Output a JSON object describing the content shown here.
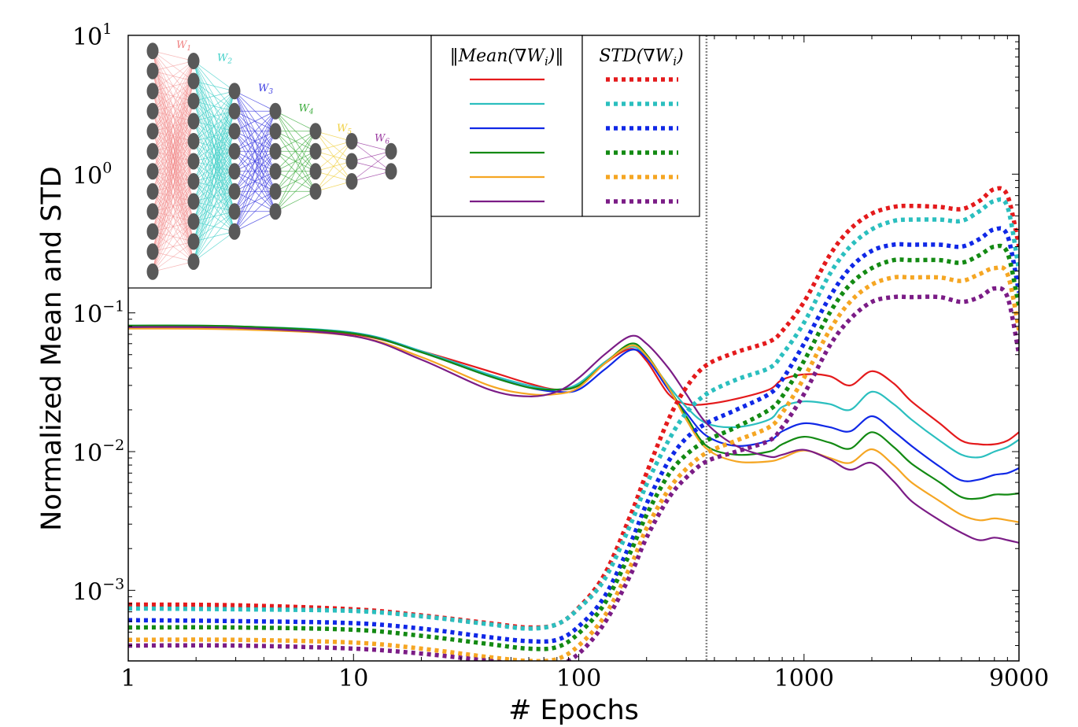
{
  "chart_data": {
    "type": "line",
    "title": "",
    "xlabel": "# Epochs",
    "ylabel": "Normalized Mean and STD",
    "xscale": "log",
    "yscale": "log",
    "xlim": [
      1,
      9000
    ],
    "ylim": [
      0.00031,
      10
    ],
    "grid": false,
    "x_ticks": [
      1,
      10,
      100,
      1000,
      9000
    ],
    "x_tick_labels": [
      "1",
      "10",
      "100",
      "1000",
      "9000"
    ],
    "y_ticks": [
      10,
      1,
      0.1,
      0.01,
      0.001
    ],
    "y_tick_labels": [
      {
        "base": "10",
        "exp": "1"
      },
      {
        "base": "10",
        "exp": "0"
      },
      {
        "base": "10",
        "exp": "−1"
      },
      {
        "base": "10",
        "exp": "−2"
      },
      {
        "base": "10",
        "exp": "−3"
      }
    ],
    "vertical_line": {
      "x": 369,
      "style": "dotted",
      "color": "#888888"
    },
    "x": [
      1,
      3,
      10,
      20,
      40,
      60,
      80,
      100,
      130,
      170,
      200,
      250,
      300,
      369,
      500,
      700,
      800,
      1000,
      1300,
      1600,
      2000,
      2500,
      3000,
      4000,
      5000,
      6000,
      7000,
      8000,
      9000
    ],
    "series": [
      {
        "name": "Mean W1",
        "kind": "mean",
        "color": "#e41a1c",
        "values": [
          0.08,
          0.079,
          0.07,
          0.053,
          0.038,
          0.031,
          0.028,
          0.03,
          0.043,
          0.055,
          0.045,
          0.026,
          0.022,
          0.022,
          0.024,
          0.028,
          0.033,
          0.036,
          0.035,
          0.03,
          0.038,
          0.031,
          0.023,
          0.016,
          0.012,
          0.0113,
          0.0113,
          0.012,
          0.0138
        ]
      },
      {
        "name": "Mean W2",
        "kind": "mean",
        "color": "#2bbfbf",
        "values": [
          0.081,
          0.08,
          0.072,
          0.053,
          0.036,
          0.03,
          0.028,
          0.031,
          0.044,
          0.057,
          0.048,
          0.03,
          0.021,
          0.016,
          0.015,
          0.017,
          0.021,
          0.023,
          0.022,
          0.02,
          0.027,
          0.022,
          0.017,
          0.012,
          0.0095,
          0.0091,
          0.01,
          0.0108,
          0.0122
        ]
      },
      {
        "name": "Mean W3",
        "kind": "mean",
        "color": "#1028e6",
        "values": [
          0.08,
          0.079,
          0.071,
          0.052,
          0.035,
          0.029,
          0.027,
          0.028,
          0.039,
          0.054,
          0.047,
          0.028,
          0.019,
          0.013,
          0.011,
          0.012,
          0.014,
          0.016,
          0.015,
          0.014,
          0.018,
          0.014,
          0.011,
          0.0078,
          0.0062,
          0.0063,
          0.0068,
          0.007,
          0.0076
        ]
      },
      {
        "name": "Mean W4",
        "kind": "mean",
        "color": "#138a13",
        "values": [
          0.081,
          0.08,
          0.071,
          0.052,
          0.035,
          0.029,
          0.028,
          0.03,
          0.043,
          0.06,
          0.05,
          0.029,
          0.018,
          0.011,
          0.0095,
          0.01,
          0.0113,
          0.0128,
          0.0116,
          0.0105,
          0.0138,
          0.0108,
          0.0082,
          0.006,
          0.0047,
          0.0046,
          0.0049,
          0.0049,
          0.005
        ]
      },
      {
        "name": "Mean W5",
        "kind": "mean",
        "color": "#f5a623",
        "values": [
          0.077,
          0.076,
          0.068,
          0.048,
          0.03,
          0.026,
          0.026,
          0.029,
          0.043,
          0.058,
          0.049,
          0.029,
          0.017,
          0.0105,
          0.0085,
          0.0085,
          0.009,
          0.0102,
          0.009,
          0.0083,
          0.0104,
          0.008,
          0.006,
          0.0044,
          0.0035,
          0.0032,
          0.0033,
          0.0032,
          0.0031
        ]
      },
      {
        "name": "Mean W6",
        "kind": "mean",
        "color": "#7b1c86",
        "values": [
          0.079,
          0.078,
          0.068,
          0.046,
          0.028,
          0.025,
          0.027,
          0.034,
          0.05,
          0.068,
          0.06,
          0.04,
          0.026,
          0.016,
          0.011,
          0.0092,
          0.0095,
          0.0103,
          0.0088,
          0.0074,
          0.0083,
          0.0061,
          0.0044,
          0.0032,
          0.0026,
          0.0023,
          0.0024,
          0.0023,
          0.0022
        ]
      },
      {
        "name": "STD W1",
        "kind": "std",
        "color": "#e41a1c",
        "values": [
          0.00079,
          0.00078,
          0.00073,
          0.00066,
          0.00058,
          0.00054,
          0.00057,
          0.00075,
          0.0013,
          0.0035,
          0.007,
          0.017,
          0.029,
          0.042,
          0.052,
          0.062,
          0.074,
          0.12,
          0.26,
          0.4,
          0.52,
          0.58,
          0.59,
          0.58,
          0.56,
          0.64,
          0.78,
          0.7,
          0.3
        ]
      },
      {
        "name": "STD W2",
        "kind": "std",
        "color": "#2bbfbf",
        "values": [
          0.00074,
          0.00073,
          0.00071,
          0.00065,
          0.00057,
          0.00053,
          0.00057,
          0.00074,
          0.0012,
          0.003,
          0.0058,
          0.012,
          0.019,
          0.026,
          0.033,
          0.04,
          0.05,
          0.085,
          0.19,
          0.3,
          0.4,
          0.46,
          0.47,
          0.47,
          0.46,
          0.54,
          0.64,
          0.58,
          0.2
        ]
      },
      {
        "name": "STD W3",
        "kind": "std",
        "color": "#1028e6",
        "values": [
          0.00061,
          0.0006,
          0.00058,
          0.00053,
          0.00046,
          0.00043,
          0.00044,
          0.00055,
          0.0009,
          0.0022,
          0.0042,
          0.0085,
          0.0125,
          0.016,
          0.02,
          0.026,
          0.033,
          0.06,
          0.13,
          0.21,
          0.28,
          0.31,
          0.31,
          0.31,
          0.3,
          0.34,
          0.4,
          0.36,
          0.14
        ]
      },
      {
        "name": "STD W4",
        "kind": "std",
        "color": "#138a13",
        "values": [
          0.00054,
          0.00054,
          0.00052,
          0.00047,
          0.00041,
          0.00038,
          0.00039,
          0.00049,
          0.0008,
          0.0019,
          0.0035,
          0.0068,
          0.0095,
          0.012,
          0.015,
          0.02,
          0.025,
          0.045,
          0.1,
          0.16,
          0.21,
          0.24,
          0.24,
          0.24,
          0.23,
          0.26,
          0.3,
          0.27,
          0.11
        ]
      },
      {
        "name": "STD W5",
        "kind": "std",
        "color": "#f5a623",
        "values": [
          0.00044,
          0.00044,
          0.00042,
          0.00038,
          0.00033,
          0.00031,
          0.00032,
          0.0004,
          0.00065,
          0.0015,
          0.0028,
          0.0053,
          0.0075,
          0.0098,
          0.012,
          0.015,
          0.019,
          0.034,
          0.075,
          0.12,
          0.16,
          0.18,
          0.18,
          0.18,
          0.17,
          0.19,
          0.21,
          0.19,
          0.075
        ]
      },
      {
        "name": "STD W6",
        "kind": "std",
        "color": "#7b1c86",
        "values": [
          0.0004,
          0.0004,
          0.00038,
          0.00035,
          0.00031,
          0.00029,
          0.00029,
          0.00035,
          0.00058,
          0.0013,
          0.0024,
          0.0046,
          0.0065,
          0.0085,
          0.01,
          0.012,
          0.015,
          0.026,
          0.058,
          0.09,
          0.12,
          0.13,
          0.13,
          0.13,
          0.12,
          0.13,
          0.15,
          0.13,
          0.05
        ]
      }
    ],
    "legend": {
      "placement": "top-center",
      "columns": [
        {
          "header": "‖Mean(∇W_i)‖",
          "header_parts": [
            "‖Mean(∇W",
            "i",
            ")‖"
          ],
          "style": "solid"
        },
        {
          "header": "STD(∇W_i)",
          "header_parts": [
            "STD(∇W",
            "i",
            ")"
          ],
          "style": "dotted"
        }
      ],
      "colors": [
        "#e41a1c",
        "#2bbfbf",
        "#1028e6",
        "#138a13",
        "#f5a623",
        "#7b1c86"
      ]
    },
    "inset": {
      "description": "neural network diagram",
      "placement": "top-left",
      "layer_sizes": [
        12,
        11,
        8,
        6,
        4,
        3,
        2
      ],
      "weight_labels": [
        "W1",
        "W2",
        "W3",
        "W4",
        "W5",
        "W6"
      ],
      "weight_colors": [
        "#f08080",
        "#40d0c8",
        "#3a3ae0",
        "#3aaa3a",
        "#f0d040",
        "#9a3aa0"
      ],
      "node_color": "#595959"
    }
  }
}
